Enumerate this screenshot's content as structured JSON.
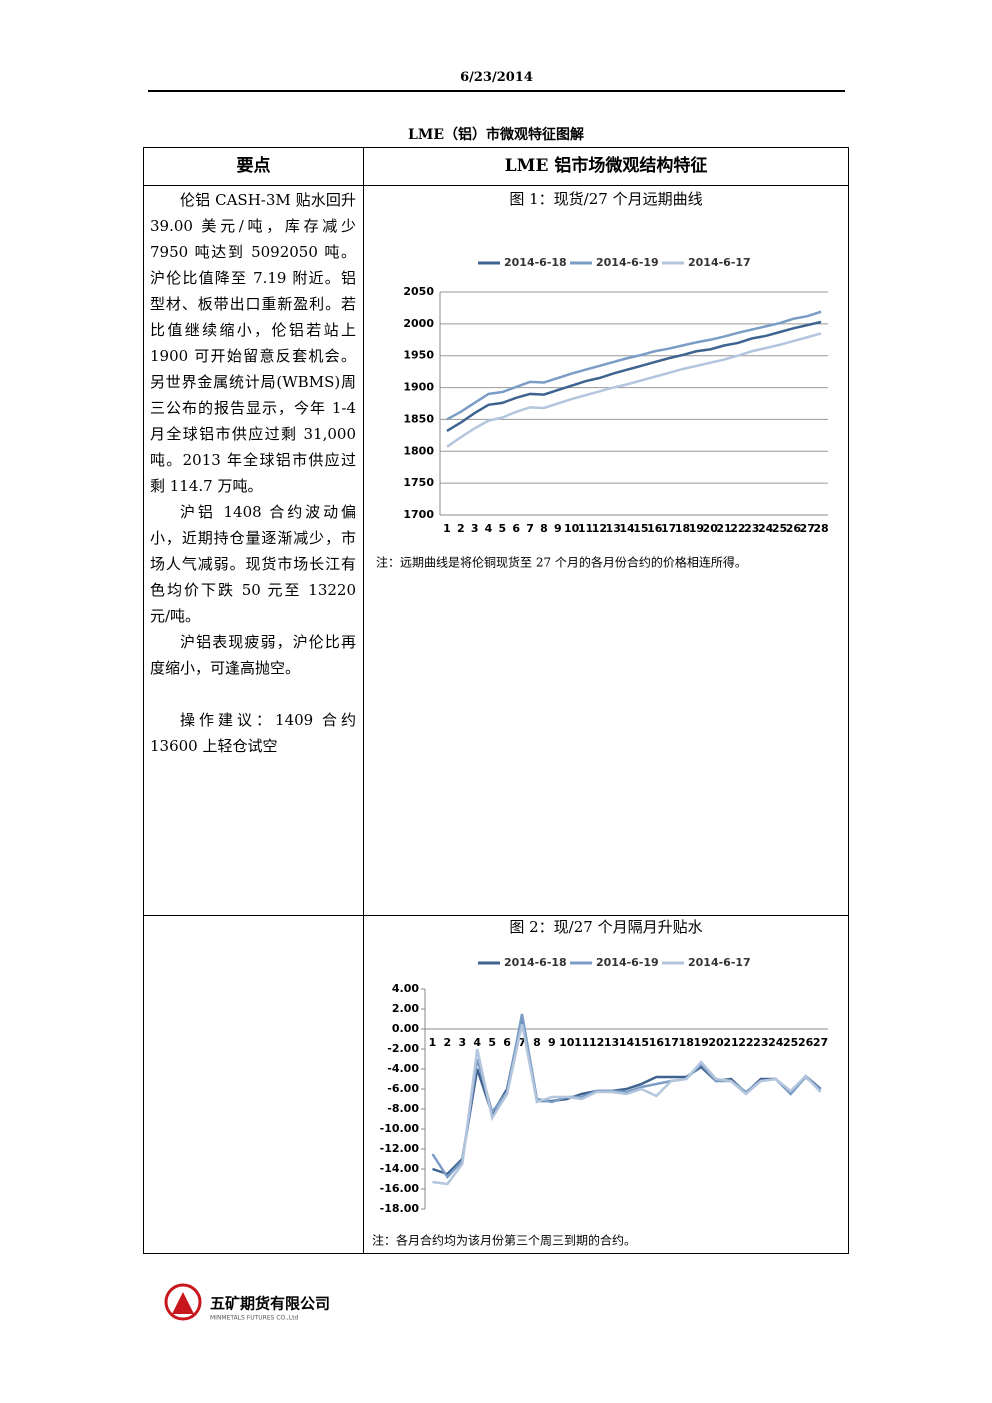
{
  "header": {
    "date": "6/23/2014"
  },
  "title": "LME（铝）市微观特征图解",
  "table": {
    "headers": [
      "要点",
      "LME 铝市场微观结构特征"
    ],
    "paragraphs": [
      "伦铝 CASH-3M 贴水回升 39.00 美元/吨，库存减少 7950 吨达到 5092050 吨。沪伦比值降至 7.19 附近。铝型材、板带出口重新盈利。若比值继续缩小，伦铝若站上 1900 可开始留意反套机会。另世界金属统计局(WBMS)周三公布的报告显示，今年 1-4 月全球铝市供应过剩 31,000 吨。2013 年全球铝市供应过剩 114.7 万吨。",
      "沪铝 1408 合约波动偏小，近期持仓量逐渐减少，市场人气减弱。现货市场长江有色均价下跌 50 元至 13220 元/吨。",
      "沪铝表现疲弱，沪伦比再度缩小，可逢高抛空。",
      "操作建议：1409 合约 13600 上轻仓试空"
    ]
  },
  "chart_data": [
    {
      "type": "line",
      "title": "图 1：现货/27 个月远期曲线",
      "note": "注：远期曲线是将伦铜现货至 27 个月的各月份合约的价格相连所得。",
      "categories": [
        "1",
        "2",
        "3",
        "4",
        "5",
        "6",
        "7",
        "8",
        "9",
        "10",
        "11",
        "12",
        "13",
        "14",
        "15",
        "16",
        "17",
        "18",
        "19",
        "20",
        "21",
        "22",
        "23",
        "24",
        "25",
        "26",
        "27",
        "28"
      ],
      "series": [
        {
          "name": "2014-6-18",
          "color": "#3f6391",
          "values": [
            1832,
            1845,
            1860,
            1873,
            1876,
            1884,
            1890,
            1889,
            1896,
            1903,
            1910,
            1915,
            1922,
            1928,
            1934,
            1940,
            1946,
            1951,
            1957,
            1960,
            1966,
            1970,
            1977,
            1981,
            1987,
            1993,
            1998,
            2003
          ]
        },
        {
          "name": "2014-6-19",
          "color": "#7b9cc4",
          "values": [
            1850,
            1862,
            1876,
            1890,
            1893,
            1901,
            1909,
            1908,
            1915,
            1922,
            1928,
            1934,
            1940,
            1946,
            1951,
            1957,
            1961,
            1966,
            1971,
            1975,
            1980,
            1986,
            1991,
            1996,
            2001,
            2008,
            2012,
            2019
          ]
        },
        {
          "name": "2014-6-17",
          "color": "#b4c6de",
          "values": [
            1807,
            1822,
            1836,
            1848,
            1853,
            1862,
            1869,
            1868,
            1875,
            1882,
            1888,
            1894,
            1900,
            1905,
            1911,
            1917,
            1923,
            1929,
            1934,
            1939,
            1944,
            1950,
            1957,
            1962,
            1967,
            1973,
            1979,
            1985
          ]
        }
      ],
      "ylim": [
        1700,
        2050
      ],
      "yticks": [
        1700,
        1750,
        1800,
        1850,
        1900,
        1950,
        2000,
        2050
      ],
      "grid": true
    },
    {
      "type": "line",
      "title": "图 2：现/27 个月隔月升贴水",
      "note": "注：各月合约均为该月份第三个周三到期的合约。",
      "categories": [
        "1",
        "2",
        "3",
        "4",
        "5",
        "6",
        "7",
        "8",
        "9",
        "10",
        "11",
        "12",
        "13",
        "14",
        "15",
        "16",
        "17",
        "18",
        "19",
        "20",
        "21",
        "22",
        "23",
        "24",
        "25",
        "26",
        "27"
      ],
      "series": [
        {
          "name": "2014-6-18",
          "color": "#3f6391",
          "values": [
            -14,
            -14.5,
            -13,
            -4,
            -8.5,
            -6,
            1.2,
            -7.2,
            -7.2,
            -7,
            -6.5,
            -6.2,
            -6.2,
            -6,
            -5.5,
            -4.8,
            -4.8,
            -4.8,
            -3.8,
            -5.2,
            -5,
            -6.4,
            -5,
            -5,
            -6.4,
            -4.7,
            -6
          ]
        },
        {
          "name": "2014-6-19",
          "color": "#7b9cc4",
          "values": [
            -12.5,
            -14.8,
            -13.2,
            -3,
            -8.3,
            -6.3,
            1.5,
            -7,
            -7.3,
            -6.8,
            -6.8,
            -6.2,
            -6.2,
            -6.3,
            -5.8,
            -5.5,
            -5.2,
            -5,
            -3.5,
            -5.2,
            -5.2,
            -6.3,
            -5.2,
            -5,
            -6.5,
            -4.8,
            -6.1
          ]
        },
        {
          "name": "2014-6-17",
          "color": "#b4c6de",
          "values": [
            -15.3,
            -15.5,
            -13.5,
            -2,
            -8.9,
            -6.5,
            0.5,
            -7.3,
            -6.8,
            -6.8,
            -7,
            -6.3,
            -6.3,
            -6.5,
            -6,
            -6.7,
            -5.2,
            -5,
            -3.3,
            -5,
            -5.2,
            -6.5,
            -5.2,
            -5,
            -6.2,
            -4.7,
            -6.3
          ]
        }
      ],
      "ylim": [
        -18,
        4
      ],
      "yticks": [
        {
          "value": -18,
          "label": "-18.00"
        },
        {
          "value": -16,
          "label": "-16.00"
        },
        {
          "value": -14,
          "label": "-14.00"
        },
        {
          "value": -12,
          "label": "-12.00"
        },
        {
          "value": -10,
          "label": "-10.00"
        },
        {
          "value": -8,
          "label": "-8.00"
        },
        {
          "value": -6,
          "label": "-6.00"
        },
        {
          "value": -4,
          "label": "-4.00"
        },
        {
          "value": -2,
          "label": "-2.00"
        },
        {
          "value": 0,
          "label": "0.00"
        },
        {
          "value": 2,
          "label": "2.00"
        },
        {
          "value": 4,
          "label": "4.00"
        }
      ],
      "grid": false
    }
  ],
  "footer": {
    "logo_cn": "五矿期货有限公司",
    "logo_en": "MINMETALS FUTURES CO.,Ltd"
  }
}
